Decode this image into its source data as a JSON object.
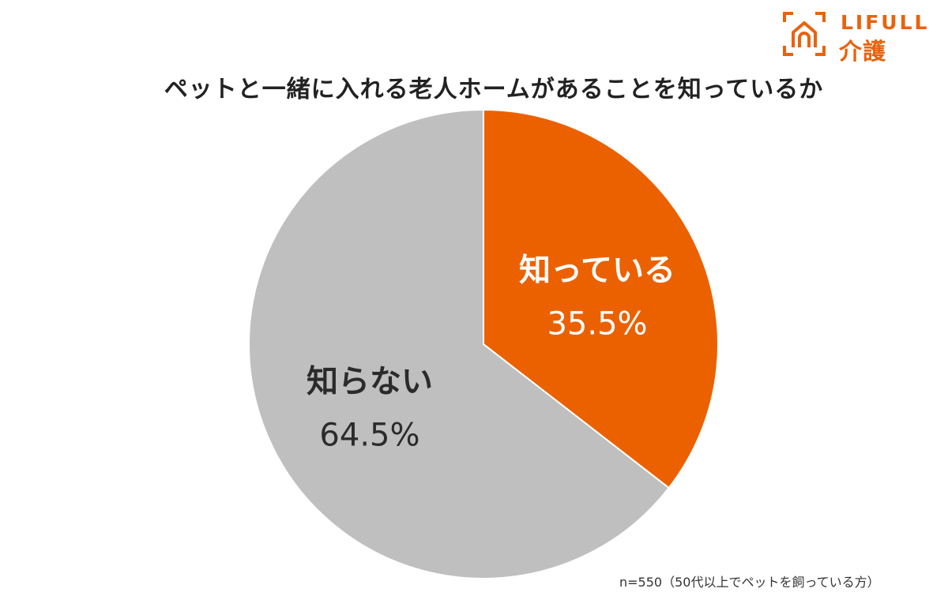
{
  "logo": {
    "text_top": "LIFULL",
    "text_bottom": "介護",
    "color": "#e9620e"
  },
  "chart_data": {
    "type": "pie",
    "title": "ペットと一緒に入れる老人ホームがあることを知っているか",
    "slices": [
      {
        "label": "知っている",
        "value": 35.5,
        "value_label": "35.5%",
        "color": "#eb6100",
        "text_color": "#ffffff"
      },
      {
        "label": "知らない",
        "value": 64.5,
        "value_label": "64.5%",
        "color": "#bfbfbf",
        "text_color": "#2b2b2b"
      }
    ],
    "start_angle_deg": 0,
    "direction": "clockwise",
    "legend": "none",
    "note": "n=550（50代以上でペットを飼っている方）"
  }
}
